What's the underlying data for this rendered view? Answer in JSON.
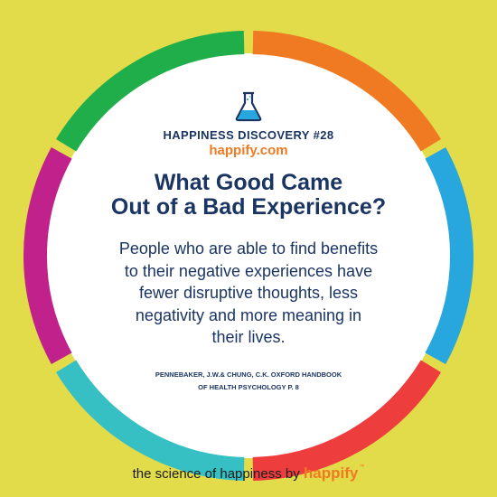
{
  "badge": {
    "discovery_label": "HAPPINESS DISCOVERY #28",
    "site": "happify.com"
  },
  "headline": {
    "line1": "What Good Came",
    "line2": "Out of a Bad Experience?"
  },
  "body": {
    "line1": "People who are able to find benefits",
    "line2": "to their negative experiences have",
    "line3": "fewer disruptive thoughts, less",
    "line4": "negativity and more meaning in",
    "line5": "their lives."
  },
  "citation": {
    "line1": "PENNEBAKER, J.W.& CHUNG, C.K. OXFORD HANDBOOK",
    "line2": "OF HEALTH PSYCHOLOGY P. 8"
  },
  "footer": {
    "tagline": "the science of happiness by",
    "brand": "happify",
    "trademark": "™"
  },
  "colors": {
    "background": "#e2dc4b",
    "navy": "#1b3563",
    "orange": "#f07a22",
    "ring": [
      "#f07a22",
      "#28a6de",
      "#ee3d3d",
      "#36c0c4",
      "#c0218a",
      "#1fae4a"
    ]
  },
  "icons": {
    "flask": "flask-icon"
  }
}
